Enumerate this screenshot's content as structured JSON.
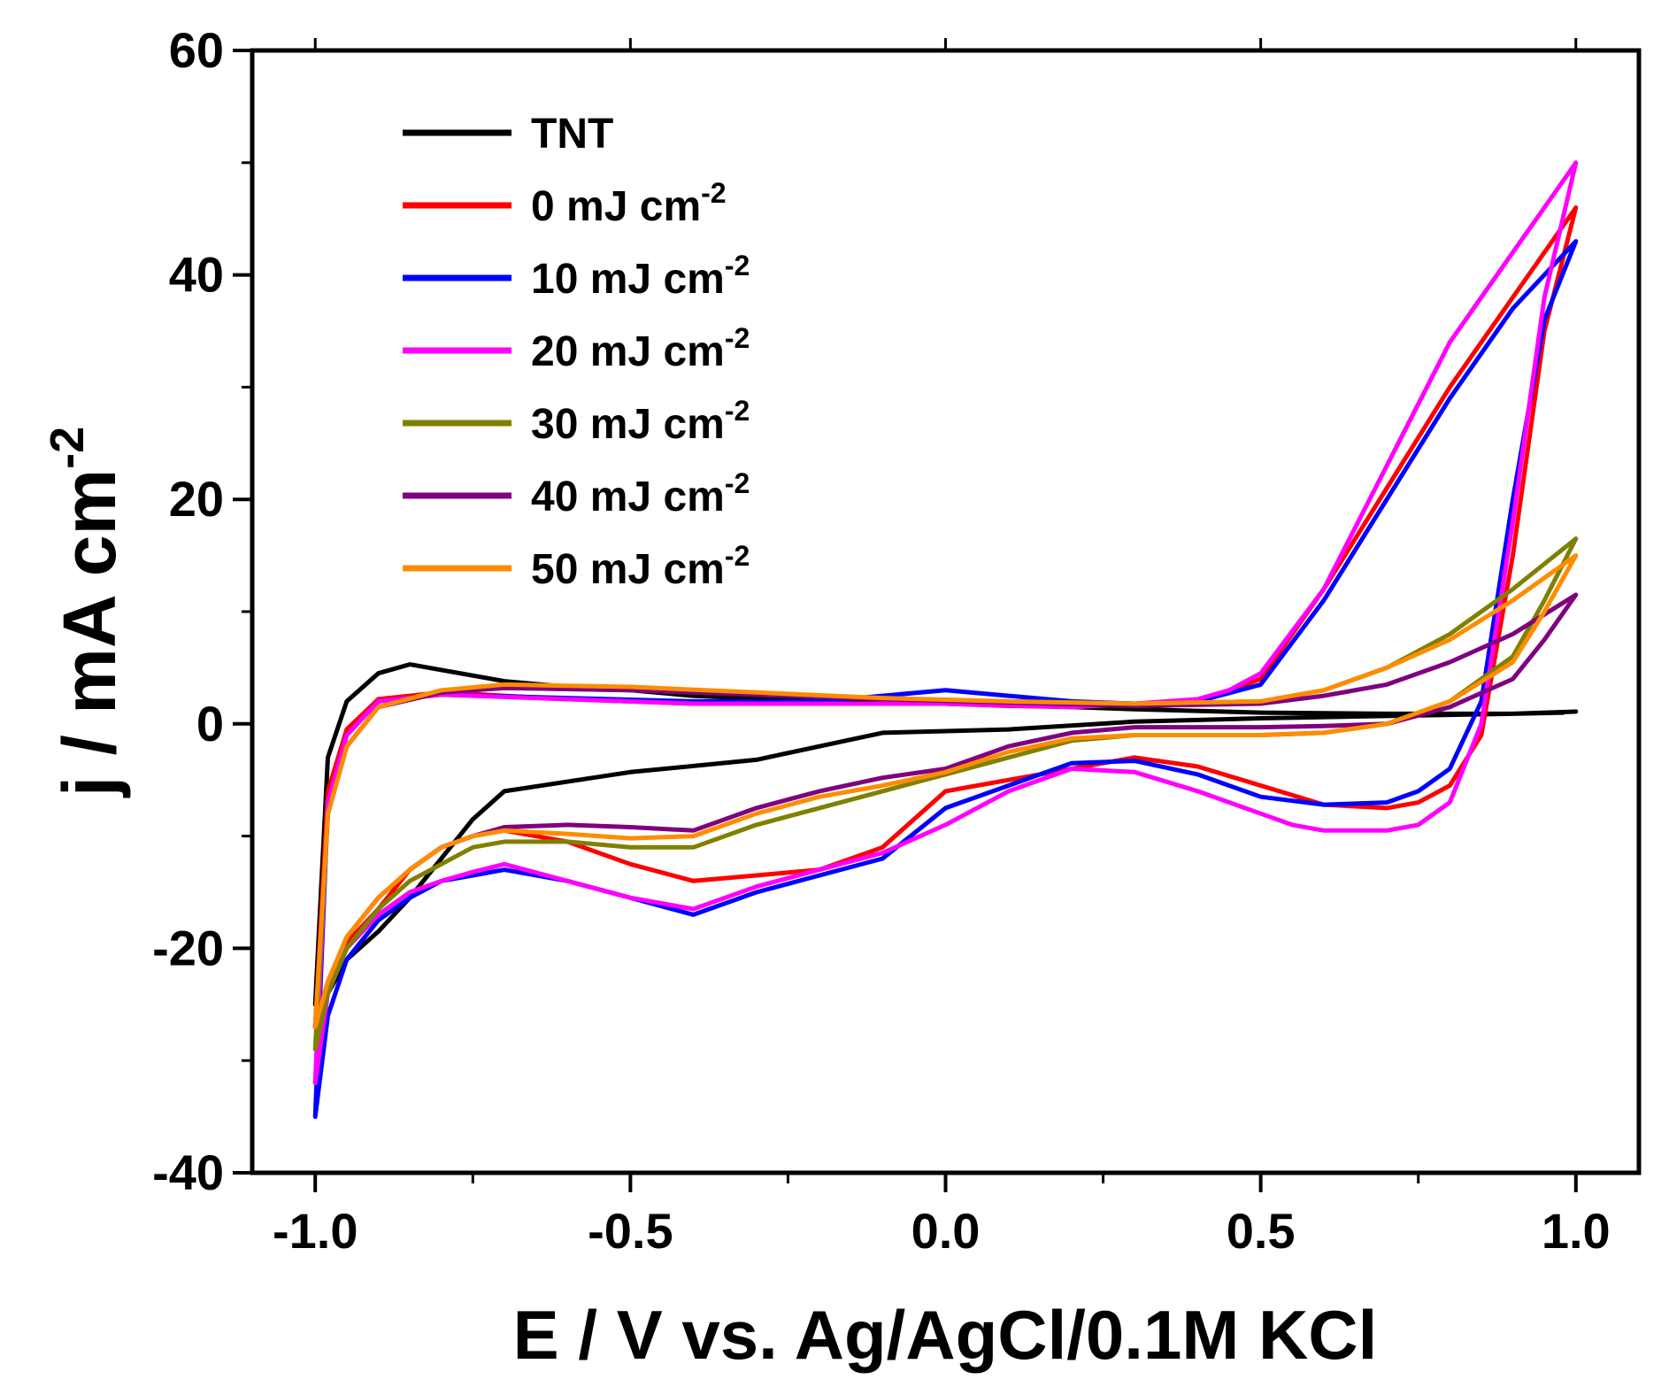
{
  "chart_data": {
    "type": "line",
    "title": "",
    "xlabel": "E / V vs. Ag/AgCl/0.1M KCl",
    "ylabel_main": "j / mA cm",
    "ylabel_sup": "-2",
    "xlim": [
      -1.1,
      1.1
    ],
    "ylim": [
      -40,
      60
    ],
    "xticks": [
      -1.0,
      -0.5,
      0.0,
      0.5,
      1.0
    ],
    "xtick_labels": [
      "-1.0",
      "-0.5",
      "0.0",
      "0.5",
      "1.0"
    ],
    "yticks": [
      -40,
      -20,
      0,
      20,
      40,
      60
    ],
    "ytick_labels": [
      "-40",
      "-20",
      "0",
      "20",
      "40",
      "60"
    ],
    "legend_position": "top-left",
    "series": [
      {
        "name": "TNT",
        "unit": "",
        "color": "#000000",
        "x": [
          0.98,
          0.9,
          0.7,
          0.5,
          0.3,
          0.2,
          0.0,
          -0.2,
          -0.4,
          -0.5,
          -0.6,
          -0.7,
          -0.8,
          -0.85,
          -0.9,
          -0.95,
          -0.98,
          -1.0,
          -0.98,
          -0.95,
          -0.9,
          -0.85,
          -0.8,
          -0.75,
          -0.7,
          -0.5,
          -0.3,
          -0.1,
          0.1,
          0.3,
          0.5,
          0.7,
          0.9,
          1.0
        ],
        "y": [
          1.0,
          0.9,
          0.9,
          1.0,
          1.3,
          1.5,
          1.8,
          2.0,
          2.5,
          3.0,
          3.3,
          3.8,
          4.8,
          5.3,
          4.5,
          2.0,
          -3.0,
          -25.0,
          -24.0,
          -21.0,
          -18.5,
          -15.5,
          -12.0,
          -8.5,
          -6.0,
          -4.3,
          -3.2,
          -0.8,
          -0.5,
          0.2,
          0.5,
          0.7,
          0.9,
          1.1
        ]
      },
      {
        "name": "0",
        "unit": "mJ cm",
        "color": "#ff0000",
        "x": [
          1.0,
          0.9,
          0.8,
          0.7,
          0.6,
          0.5,
          0.4,
          0.3,
          0.2,
          0.1,
          0.0,
          -0.2,
          -0.4,
          -0.6,
          -0.8,
          -0.9,
          -0.95,
          -0.98,
          -1.0,
          -0.98,
          -0.95,
          -0.9,
          -0.85,
          -0.8,
          -0.75,
          -0.7,
          -0.6,
          -0.5,
          -0.4,
          -0.3,
          -0.2,
          -0.1,
          0.0,
          0.1,
          0.2,
          0.3,
          0.4,
          0.5,
          0.6,
          0.7,
          0.75,
          0.8,
          0.85,
          0.9,
          0.95,
          1.0
        ],
        "y": [
          46.0,
          38.0,
          30.0,
          21.0,
          12.0,
          4.0,
          2.0,
          1.8,
          1.5,
          1.6,
          1.8,
          1.8,
          1.8,
          2.2,
          2.8,
          2.2,
          -0.5,
          -6.0,
          -27.0,
          -23.0,
          -19.5,
          -16.5,
          -13.0,
          -11.0,
          -10.0,
          -9.5,
          -10.5,
          -12.5,
          -14.0,
          -13.5,
          -13.0,
          -11.0,
          -6.0,
          -5.0,
          -4.0,
          -3.0,
          -3.8,
          -5.5,
          -7.2,
          -7.5,
          -7.0,
          -5.5,
          -1.0,
          15.0,
          35.0,
          46.0
        ]
      },
      {
        "name": "10",
        "unit": "mJ cm",
        "color": "#0000ff",
        "x": [
          1.0,
          0.9,
          0.8,
          0.7,
          0.6,
          0.5,
          0.4,
          0.3,
          0.2,
          0.1,
          0.0,
          -0.2,
          -0.4,
          -0.6,
          -0.8,
          -0.9,
          -0.95,
          -0.98,
          -1.0,
          -0.98,
          -0.95,
          -0.9,
          -0.85,
          -0.8,
          -0.75,
          -0.7,
          -0.6,
          -0.5,
          -0.4,
          -0.3,
          -0.2,
          -0.1,
          0.0,
          0.1,
          0.2,
          0.3,
          0.4,
          0.5,
          0.6,
          0.7,
          0.75,
          0.8,
          0.85,
          0.9,
          0.95,
          1.0
        ],
        "y": [
          43.0,
          37.0,
          29.0,
          20.0,
          11.0,
          3.5,
          2.0,
          1.8,
          2.0,
          2.5,
          3.0,
          2.0,
          2.0,
          2.3,
          2.6,
          2.0,
          -1.0,
          -7.0,
          -35.0,
          -26.0,
          -21.0,
          -17.5,
          -15.5,
          -14.0,
          -13.5,
          -13.0,
          -14.0,
          -15.5,
          -17.0,
          -15.0,
          -13.5,
          -12.0,
          -7.5,
          -5.5,
          -3.5,
          -3.3,
          -4.5,
          -6.5,
          -7.2,
          -7.0,
          -6.0,
          -4.0,
          2.0,
          20.0,
          36.0,
          43.0
        ]
      },
      {
        "name": "20",
        "unit": "mJ cm",
        "color": "#ff00ff",
        "x": [
          1.0,
          0.95,
          0.9,
          0.8,
          0.7,
          0.6,
          0.5,
          0.45,
          0.4,
          0.3,
          0.2,
          0.0,
          -0.2,
          -0.4,
          -0.6,
          -0.8,
          -0.9,
          -0.95,
          -0.98,
          -1.0,
          -0.98,
          -0.95,
          -0.9,
          -0.85,
          -0.8,
          -0.75,
          -0.7,
          -0.6,
          -0.5,
          -0.4,
          -0.3,
          -0.2,
          -0.1,
          0.0,
          0.1,
          0.2,
          0.3,
          0.4,
          0.5,
          0.55,
          0.6,
          0.7,
          0.75,
          0.8,
          0.85,
          0.9,
          0.95,
          1.0
        ],
        "y": [
          50.0,
          46.0,
          42.0,
          34.0,
          23.0,
          12.0,
          4.5,
          3.0,
          2.2,
          1.8,
          1.5,
          1.8,
          1.8,
          1.8,
          2.2,
          2.6,
          2.0,
          -1.0,
          -7.0,
          -32.0,
          -24.0,
          -20.0,
          -17.0,
          -15.0,
          -14.0,
          -13.2,
          -12.5,
          -14.0,
          -15.5,
          -16.5,
          -14.5,
          -13.0,
          -11.5,
          -9.0,
          -6.0,
          -4.0,
          -4.3,
          -6.0,
          -8.0,
          -9.0,
          -9.5,
          -9.5,
          -9.0,
          -7.0,
          0.0,
          18.0,
          38.0,
          50.0
        ]
      },
      {
        "name": "30",
        "unit": "mJ cm",
        "color": "#808000",
        "x": [
          1.0,
          0.9,
          0.8,
          0.7,
          0.6,
          0.5,
          0.3,
          0.1,
          -0.1,
          -0.3,
          -0.5,
          -0.7,
          -0.8,
          -0.9,
          -0.95,
          -0.98,
          -1.0,
          -0.98,
          -0.95,
          -0.9,
          -0.85,
          -0.8,
          -0.75,
          -0.7,
          -0.6,
          -0.5,
          -0.4,
          -0.3,
          -0.2,
          -0.1,
          0.0,
          0.1,
          0.2,
          0.3,
          0.4,
          0.5,
          0.6,
          0.7,
          0.8,
          0.9,
          0.95,
          1.0
        ],
        "y": [
          16.5,
          12.0,
          8.0,
          5.0,
          3.0,
          2.0,
          1.8,
          2.0,
          2.2,
          2.6,
          3.0,
          3.2,
          2.8,
          1.5,
          -2.0,
          -8.0,
          -29.0,
          -24.0,
          -20.0,
          -16.5,
          -14.0,
          -12.5,
          -11.0,
          -10.5,
          -10.5,
          -11.0,
          -11.0,
          -9.0,
          -7.5,
          -6.0,
          -4.5,
          -3.0,
          -1.5,
          -1.0,
          -1.0,
          -1.0,
          -0.8,
          0.0,
          2.0,
          6.0,
          11.0,
          16.5
        ]
      },
      {
        "name": "40",
        "unit": "mJ cm",
        "color": "#800080",
        "x": [
          1.0,
          0.9,
          0.8,
          0.7,
          0.6,
          0.5,
          0.3,
          0.1,
          -0.1,
          -0.3,
          -0.5,
          -0.7,
          -0.8,
          -0.9,
          -0.95,
          -0.98,
          -1.0,
          -0.98,
          -0.95,
          -0.9,
          -0.85,
          -0.8,
          -0.75,
          -0.7,
          -0.6,
          -0.5,
          -0.4,
          -0.3,
          -0.2,
          -0.1,
          0.0,
          0.1,
          0.2,
          0.3,
          0.4,
          0.5,
          0.6,
          0.7,
          0.8,
          0.9,
          0.95,
          1.0
        ],
        "y": [
          11.5,
          8.0,
          5.5,
          3.5,
          2.5,
          1.8,
          1.6,
          1.9,
          2.2,
          2.6,
          3.0,
          3.2,
          2.8,
          1.5,
          -2.0,
          -8.0,
          -27.0,
          -23.0,
          -19.0,
          -15.5,
          -13.0,
          -11.0,
          -10.0,
          -9.2,
          -9.0,
          -9.2,
          -9.5,
          -7.5,
          -6.0,
          -4.8,
          -4.0,
          -2.0,
          -0.8,
          -0.3,
          -0.3,
          -0.3,
          -0.2,
          0.0,
          1.5,
          4.0,
          7.5,
          11.5
        ]
      },
      {
        "name": "50",
        "unit": "mJ cm",
        "color": "#ff8c00",
        "x": [
          1.0,
          0.9,
          0.8,
          0.7,
          0.6,
          0.5,
          0.3,
          0.1,
          -0.1,
          -0.3,
          -0.5,
          -0.7,
          -0.8,
          -0.9,
          -0.95,
          -0.98,
          -1.0,
          -0.98,
          -0.95,
          -0.9,
          -0.85,
          -0.8,
          -0.75,
          -0.7,
          -0.6,
          -0.5,
          -0.4,
          -0.3,
          -0.2,
          -0.1,
          0.0,
          0.1,
          0.2,
          0.3,
          0.4,
          0.5,
          0.6,
          0.7,
          0.8,
          0.9,
          0.95,
          1.0
        ],
        "y": [
          15.0,
          11.0,
          7.5,
          5.0,
          3.0,
          2.0,
          1.8,
          2.0,
          2.3,
          2.8,
          3.3,
          3.5,
          3.0,
          1.5,
          -2.0,
          -8.0,
          -27.0,
          -23.0,
          -19.0,
          -15.5,
          -13.0,
          -11.0,
          -10.0,
          -9.5,
          -9.8,
          -10.2,
          -10.0,
          -8.0,
          -6.5,
          -5.5,
          -4.3,
          -2.5,
          -1.3,
          -1.0,
          -1.0,
          -1.0,
          -0.8,
          0.0,
          2.0,
          5.5,
          10.0,
          15.0
        ]
      }
    ]
  }
}
